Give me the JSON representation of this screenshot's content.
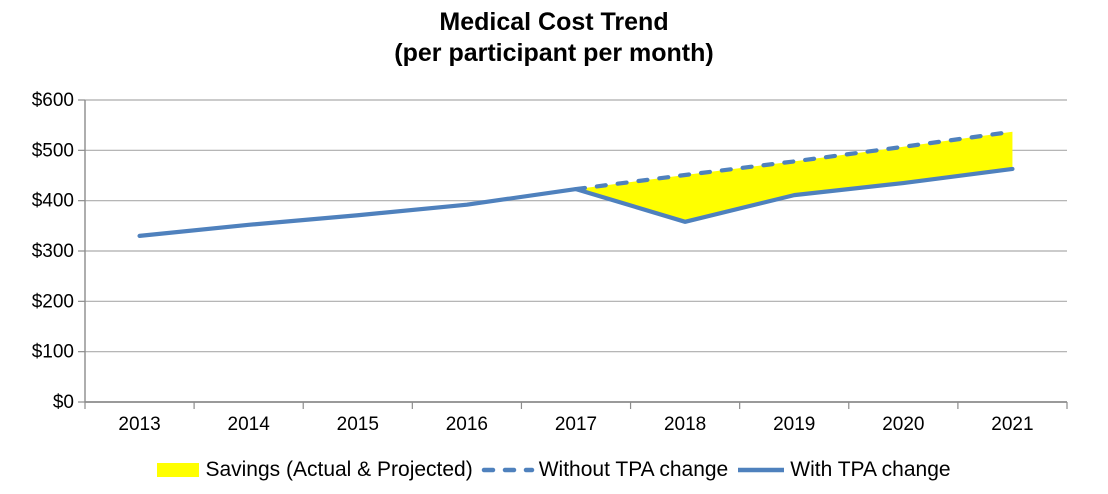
{
  "title": {
    "line1": "Medical Cost Trend",
    "line2": "(per participant per month)"
  },
  "chart_data": {
    "type": "line",
    "categories": [
      "2013",
      "2014",
      "2015",
      "2016",
      "2017",
      "2018",
      "2019",
      "2020",
      "2021"
    ],
    "series": [
      {
        "name": "Savings (Actual & Projected)",
        "render": "area-between",
        "between": [
          "Without TPA change",
          "With TPA change"
        ],
        "color": "#FFFF00"
      },
      {
        "name": "Without TPA change",
        "render": "line",
        "style": "dashed",
        "color": "#4F81BD",
        "values": [
          null,
          null,
          null,
          null,
          423,
          451,
          478,
          507,
          537
        ]
      },
      {
        "name": "With TPA change",
        "render": "line",
        "style": "solid",
        "color": "#4F81BD",
        "values": [
          330,
          352,
          371,
          392,
          423,
          358,
          411,
          435,
          463
        ]
      }
    ],
    "xlabel": "",
    "ylabel": "",
    "ylim": [
      0,
      600
    ],
    "ytick_step": 100,
    "ytick_labels": [
      "$0",
      "$100",
      "$200",
      "$300",
      "$400",
      "$500",
      "$600"
    ],
    "grid": true,
    "legend_position": "bottom"
  },
  "colors": {
    "line_blue": "#4F81BD",
    "savings_yellow": "#FFFF00",
    "gridline_gray": "#ACACAC",
    "axis_gray": "#8C8C8C",
    "text_black": "#000000"
  }
}
